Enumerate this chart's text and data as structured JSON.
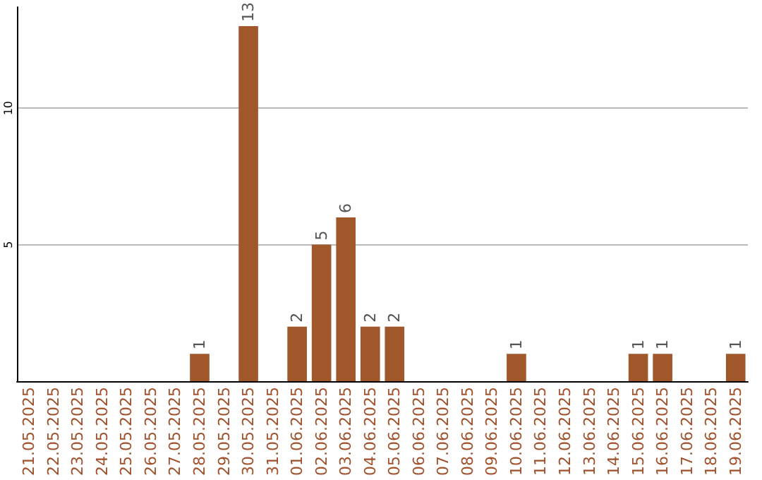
{
  "chart_data": {
    "type": "bar",
    "categories": [
      "21.05.2025",
      "22.05.2025",
      "23.05.2025",
      "24.05.2025",
      "25.05.2025",
      "26.05.2025",
      "27.05.2025",
      "28.05.2025",
      "29.05.2025",
      "30.05.2025",
      "31.05.2025",
      "01.06.2025",
      "02.06.2025",
      "03.06.2025",
      "04.06.2025",
      "05.06.2025",
      "06.06.2025",
      "07.06.2025",
      "08.06.2025",
      "09.06.2025",
      "10.06.2025",
      "11.06.2025",
      "12.06.2025",
      "13.06.2025",
      "14.06.2025",
      "15.06.2025",
      "16.06.2025",
      "17.06.2025",
      "18.06.2025",
      "19.06.2025"
    ],
    "values": [
      0,
      0,
      0,
      0,
      0,
      0,
      0,
      1,
      0,
      13,
      0,
      2,
      5,
      6,
      2,
      2,
      0,
      0,
      0,
      0,
      1,
      0,
      0,
      0,
      0,
      1,
      1,
      0,
      0,
      1
    ],
    "value_labels": [
      null,
      null,
      null,
      null,
      null,
      null,
      null,
      "1",
      null,
      "13",
      null,
      "2",
      "5",
      "6",
      "2",
      "2",
      null,
      null,
      null,
      null,
      "1",
      null,
      null,
      null,
      null,
      "1",
      "1",
      null,
      null,
      "1"
    ],
    "color": "#a0572a",
    "ylim": [
      0,
      13.7
    ],
    "yticks": [
      5,
      10
    ],
    "grid": "y"
  }
}
